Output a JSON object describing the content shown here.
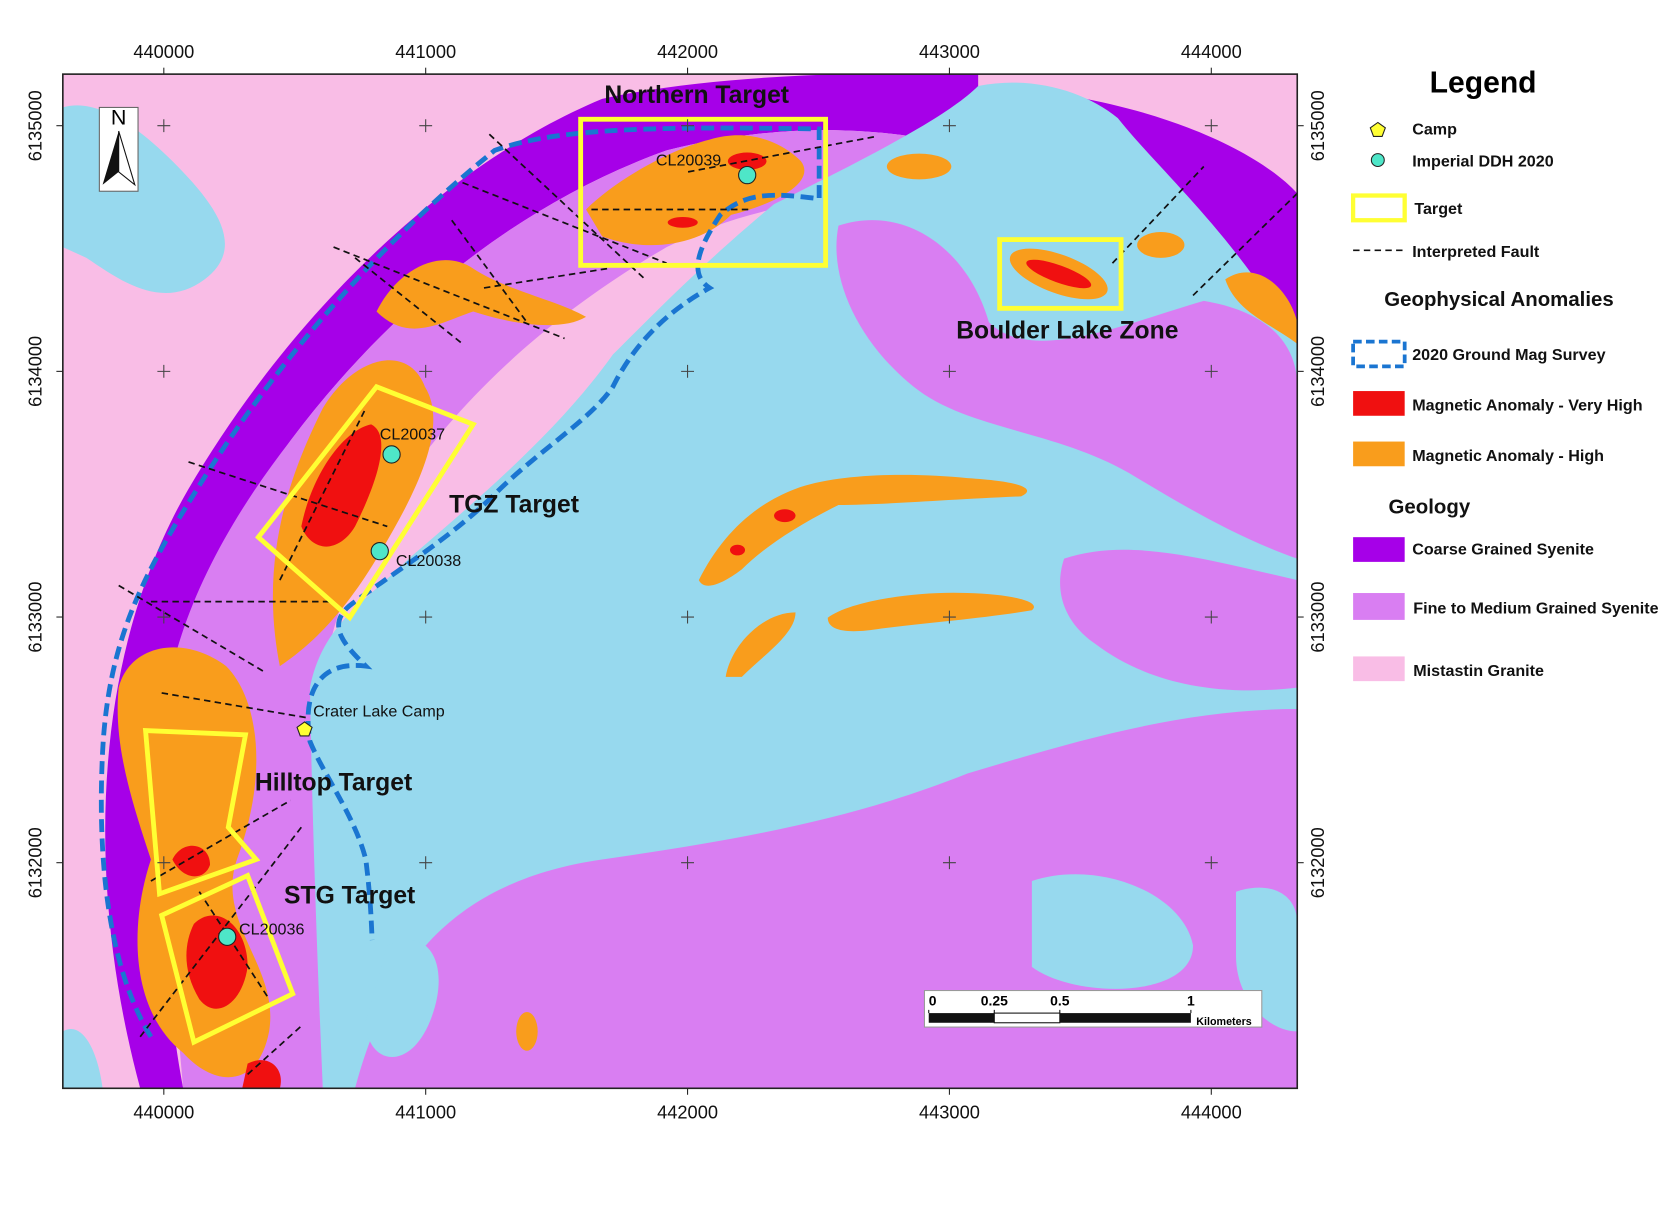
{
  "map": {
    "xticks": [
      440000,
      441000,
      442000,
      443000,
      444000
    ],
    "yticks": [
      6132000,
      6133000,
      6134000,
      6135000
    ],
    "north": "N",
    "labels": [
      "Northern Target",
      "TGZ Target",
      "Hilltop Target",
      "STG Target",
      "Boulder Lake Zone"
    ],
    "drill_holes": [
      "CL20039",
      "CL20037",
      "CL20038",
      "CL20036"
    ],
    "camp": "Crater Lake Camp",
    "legend": {
      "title": "Legend",
      "items": [
        "Camp",
        "Imperial DDH 2020",
        "Target",
        "Interpreted Fault"
      ],
      "anomalies_heading": "Geophysical Anomalies",
      "anomalies": [
        "2020 Ground Mag Survey",
        "Magnetic Anomaly - Very High",
        "Magnetic Anomaly - High"
      ],
      "geology_heading": "Geology",
      "geology": [
        "Coarse Grained Syenite",
        "Fine to Medium Grained Syenite",
        "Mistastin Granite"
      ]
    },
    "scale_bar": {
      "ticks": [
        0,
        0.25,
        0.5,
        1
      ],
      "unit": "Kilometers"
    }
  }
}
